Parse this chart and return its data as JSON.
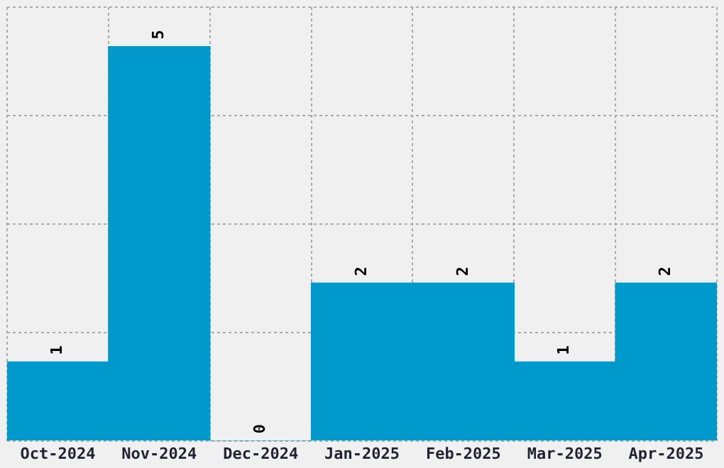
{
  "chart_data": {
    "type": "bar",
    "categories": [
      "Oct-2024",
      "Nov-2024",
      "Dec-2024",
      "Jan-2025",
      "Feb-2025",
      "Mar-2025",
      "Apr-2025"
    ],
    "values": [
      1,
      5,
      0,
      2,
      2,
      1,
      2
    ],
    "color": "#0099cc",
    "data_labels": true,
    "grid": true,
    "tick_labels": "x",
    "ylim": [
      0,
      5.5
    ],
    "yticks": [
      {
        "value": 0,
        "label": null
      },
      {
        "value": 1.375,
        "label": null
      },
      {
        "value": 2.75,
        "label": null
      },
      {
        "value": 4.125,
        "label": null
      },
      {
        "value": 5.5,
        "label": null
      }
    ]
  }
}
